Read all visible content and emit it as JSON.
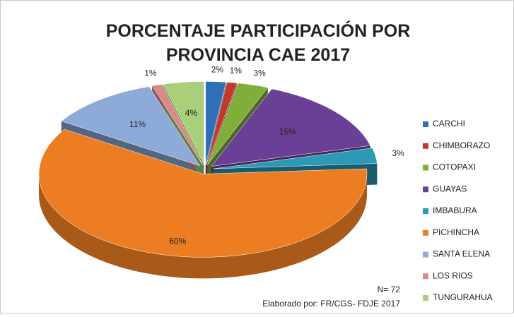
{
  "chart_data": {
    "type": "pie",
    "title": "PORCENTAJE PARTICIPACIÓN POR PROVINCIA CAE 2017",
    "categories": [
      "CARCHI",
      "CHIMBORAZO",
      "COTOPAXI",
      "GUAYAS",
      "IMBABURA",
      "PICHINCHA",
      "SANTA ELENA",
      "LOS RIOS",
      "TUNGURAHUA"
    ],
    "values": [
      2,
      1,
      3,
      15,
      3,
      60,
      11,
      1,
      4
    ],
    "value_labels": [
      "2%",
      "1%",
      "3%",
      "15%",
      "3%",
      "60%",
      "11%",
      "1%",
      "4%"
    ],
    "colors": [
      "#2f6fba",
      "#c0392b",
      "#7fae3a",
      "#6a3f96",
      "#2c9ab7",
      "#ec7d22",
      "#8eaad8",
      "#d98a88",
      "#a9cf7a"
    ],
    "legend": "right",
    "annotations": [
      "N= 72",
      "Elaborado por: FR/CGS- FDJE 2017"
    ]
  }
}
